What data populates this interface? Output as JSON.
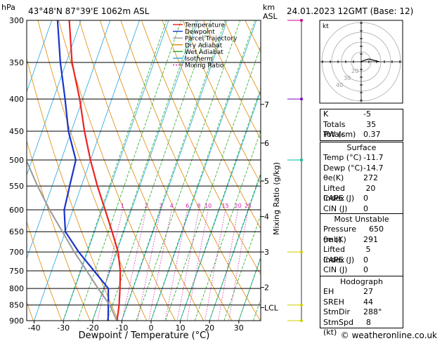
{
  "header": {
    "location": "43°48'N  87°39'E  1062m  ASL",
    "date": "24.01.2023  12GMT  (Base: 12)",
    "hpa_unit": "hPa",
    "km_unit": "km",
    "asl_unit": "ASL"
  },
  "footer": {
    "credit": "© weatheronline.co.uk"
  },
  "colors": {
    "temperature": "#ee2222",
    "dewpoint": "#1a33cc",
    "parcel": "#999999",
    "dry_adiabat": "#e08800",
    "wet_adiabat": "#22aa22",
    "isotherm": "#22a5e0",
    "mixing_ratio": "#cc22aa"
  },
  "chart_data": {
    "type": "line",
    "title": "",
    "xlabel": "Dewpoint / Temperature (°C)",
    "ylabel": "hPa",
    "right_label": "Mixing Ratio (g/kg)",
    "xlim": [
      -42,
      38
    ],
    "ylim": [
      900,
      300
    ],
    "pressure_levels": [
      300,
      350,
      400,
      450,
      500,
      550,
      600,
      650,
      700,
      750,
      800,
      850,
      900
    ],
    "pressure_tick_labels": [
      "300",
      "350",
      "400",
      "450",
      "500",
      "550",
      "600",
      "650",
      "700",
      "750",
      "800",
      "850",
      "900"
    ],
    "temp_tick_values": [
      -40,
      -30,
      -20,
      -10,
      0,
      10,
      20,
      30
    ],
    "temp_tick_labels": [
      "-40",
      "-30",
      "-20",
      "-10",
      "0",
      "10",
      "20",
      "30"
    ],
    "km_labels": [
      {
        "p": 408,
        "label": "7"
      },
      {
        "p": 470,
        "label": "6"
      },
      {
        "p": 540,
        "label": "5"
      },
      {
        "p": 615,
        "label": "4"
      },
      {
        "p": 700,
        "label": "3"
      },
      {
        "p": 797,
        "label": "2"
      },
      {
        "p": 858,
        "label": "LCL"
      }
    ],
    "mixing_ratio_lines": [
      {
        "w": 1,
        "label": "1"
      },
      {
        "w": 2,
        "label": "2"
      },
      {
        "w": 3,
        "label": "3"
      },
      {
        "w": 4,
        "label": "4"
      },
      {
        "w": 6,
        "label": "6"
      },
      {
        "w": 8,
        "label": "8"
      },
      {
        "w": 10,
        "label": "10"
      },
      {
        "w": 15,
        "label": "15"
      },
      {
        "w": 20,
        "label": "20"
      },
      {
        "w": 25,
        "label": "25"
      }
    ],
    "legend": [
      {
        "name": "Temperature",
        "key": "temperature",
        "dash": "none"
      },
      {
        "name": "Dewpoint",
        "key": "dewpoint",
        "dash": "none"
      },
      {
        "name": "Parcel Trajectory",
        "key": "parcel",
        "dash": "none"
      },
      {
        "name": "Dry Adiabat",
        "key": "dry_adiabat",
        "dash": "none"
      },
      {
        "name": "Wet Adiabat",
        "key": "wet_adiabat",
        "dash": "none"
      },
      {
        "name": "Isotherm",
        "key": "isotherm",
        "dash": "none"
      },
      {
        "name": "Mixing Ratio",
        "key": "mixing_ratio",
        "dash": "2,2"
      }
    ],
    "legend_position": "top-left",
    "series": [
      {
        "name": "Temperature",
        "key": "temperature",
        "points": [
          [
            900,
            -11.7
          ],
          [
            875,
            -12.2
          ],
          [
            850,
            -12.8
          ],
          [
            800,
            -14.5
          ],
          [
            750,
            -16.5
          ],
          [
            700,
            -19.5
          ],
          [
            650,
            -24.0
          ],
          [
            600,
            -29.0
          ],
          [
            550,
            -34.5
          ],
          [
            500,
            -40.0
          ],
          [
            450,
            -45.5
          ],
          [
            400,
            -51.0
          ],
          [
            350,
            -58.0
          ],
          [
            300,
            -64.0
          ]
        ]
      },
      {
        "name": "Dewpoint",
        "key": "dewpoint",
        "points": [
          [
            900,
            -14.7
          ],
          [
            850,
            -16.5
          ],
          [
            800,
            -18.5
          ],
          [
            750,
            -25.5
          ],
          [
            700,
            -33.0
          ],
          [
            650,
            -40.0
          ],
          [
            600,
            -43.0
          ],
          [
            550,
            -44.0
          ],
          [
            500,
            -45.0
          ],
          [
            450,
            -51.0
          ],
          [
            400,
            -56.0
          ],
          [
            350,
            -62.0
          ],
          [
            300,
            -68.0
          ]
        ]
      },
      {
        "name": "Parcel Trajectory",
        "key": "parcel",
        "points": [
          [
            900,
            -11.7
          ],
          [
            850,
            -16.0
          ],
          [
            800,
            -22.0
          ],
          [
            750,
            -28.0
          ],
          [
            700,
            -34.5
          ],
          [
            650,
            -41.0
          ],
          [
            600,
            -48.0
          ],
          [
            550,
            -55.0
          ],
          [
            500,
            -62.0
          ],
          [
            450,
            -69.0
          ],
          [
            400,
            -77.0
          ],
          [
            350,
            -85.0
          ]
        ]
      }
    ],
    "wind_barbs": [
      {
        "p": 300,
        "speed_label": "high"
      },
      {
        "p": 400,
        "speed_label": "mid"
      },
      {
        "p": 500,
        "speed_label": "mid"
      },
      {
        "p": 700,
        "speed_label": "low"
      },
      {
        "p": 850,
        "speed_label": "low"
      },
      {
        "p": 900,
        "speed_label": "low"
      }
    ]
  },
  "hodograph": {
    "label": "kt",
    "ring_labels": [
      "20",
      "30",
      "40"
    ]
  },
  "indices": [
    {
      "label": "K",
      "value": "-5"
    },
    {
      "label": "Totals Totals",
      "value": "35"
    },
    {
      "label": "PW (cm)",
      "value": "0.37"
    }
  ],
  "surface": {
    "title": "Surface",
    "rows": [
      {
        "label": "Temp (°C)",
        "value": "-11.7"
      },
      {
        "label": "Dewp (°C)",
        "value": "-14.7"
      },
      {
        "label": "θe(K)",
        "value": "272"
      },
      {
        "label": "Lifted Index",
        "value": "20"
      },
      {
        "label": "CAPE (J)",
        "value": "0"
      },
      {
        "label": "CIN (J)",
        "value": "0"
      }
    ]
  },
  "most_unstable": {
    "title": "Most Unstable",
    "rows": [
      {
        "label": "Pressure (mb)",
        "value": "650"
      },
      {
        "label": "θe (K)",
        "value": "291"
      },
      {
        "label": "Lifted Index",
        "value": "5"
      },
      {
        "label": "CAPE (J)",
        "value": "0"
      },
      {
        "label": "CIN (J)",
        "value": "0"
      }
    ]
  },
  "hodograph_table": {
    "title": "Hodograph",
    "rows": [
      {
        "label": "EH",
        "value": "27"
      },
      {
        "label": "SREH",
        "value": "44"
      },
      {
        "label": "StmDir",
        "value": "288°"
      },
      {
        "label": "StmSpd (kt)",
        "value": "8"
      }
    ]
  }
}
